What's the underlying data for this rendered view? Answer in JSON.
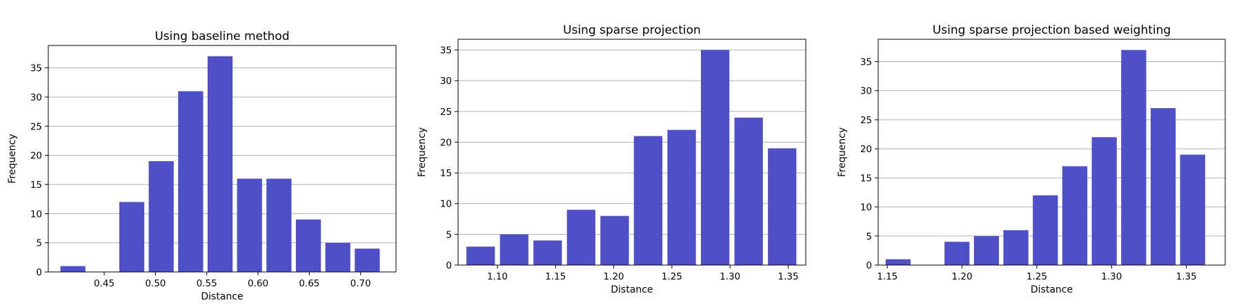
{
  "chart_data": [
    {
      "type": "bar",
      "title": "Using baseline method",
      "xlabel": "Distance",
      "ylabel": "Frequency",
      "bar_color": "#4f4fc7",
      "grid": "y",
      "bin_width": 0.0287,
      "x": [
        0.4195,
        0.4482,
        0.4769,
        0.5056,
        0.5343,
        0.563,
        0.5917,
        0.6204,
        0.6491,
        0.6778,
        0.7065
      ],
      "values": [
        1,
        0,
        12,
        19,
        31,
        37,
        16,
        16,
        9,
        5,
        4
      ],
      "xlim": [
        0.3955,
        0.7345
      ],
      "ylim": [
        0,
        38.85
      ],
      "xticks": [
        0.45,
        0.5,
        0.55,
        0.6,
        0.65,
        0.7
      ],
      "xtick_labels": [
        "0.45",
        "0.50",
        "0.55",
        "0.60",
        "0.65",
        "0.70"
      ],
      "yticks": [
        0,
        5,
        10,
        15,
        20,
        25,
        30,
        35
      ],
      "ytick_labels": [
        "0",
        "5",
        "10",
        "15",
        "20",
        "25",
        "30",
        "35"
      ]
    },
    {
      "type": "bar",
      "title": "Using sparse projection",
      "xlabel": "Distance",
      "ylabel": "Frequency",
      "bar_color": "#4f4fc7",
      "grid": "y",
      "bin_width": 0.0288,
      "x": [
        1.0856,
        1.1144,
        1.1432,
        1.172,
        1.2008,
        1.2296,
        1.2584,
        1.2872,
        1.316,
        1.3448
      ],
      "values": [
        3,
        5,
        4,
        9,
        8,
        21,
        22,
        35,
        24,
        19
      ],
      "xlim": [
        1.0662,
        1.3651
      ],
      "ylim": [
        0,
        36.75
      ],
      "xticks": [
        1.1,
        1.15,
        1.2,
        1.25,
        1.3,
        1.35
      ],
      "xtick_labels": [
        "1.10",
        "1.15",
        "1.20",
        "1.25",
        "1.30",
        "1.35"
      ],
      "yticks": [
        0,
        5,
        10,
        15,
        20,
        25,
        30,
        35
      ],
      "ytick_labels": [
        "0",
        "5",
        "10",
        "15",
        "20",
        "25",
        "30",
        "35"
      ]
    },
    {
      "type": "bar",
      "title": "Using sparse projection based weighting",
      "xlabel": "Distance",
      "ylabel": "Frequency",
      "bar_color": "#4f4fc7",
      "grid": "y",
      "bin_width": 0.0197,
      "x": [
        1.1572,
        1.1769,
        1.1966,
        1.2163,
        1.236,
        1.2557,
        1.2754,
        1.2951,
        1.3148,
        1.3345,
        1.3542
      ],
      "values": [
        1,
        0,
        4,
        5,
        6,
        12,
        17,
        22,
        37,
        27,
        19
      ],
      "xlim": [
        1.1439,
        1.376
      ],
      "ylim": [
        0,
        38.85
      ],
      "xticks": [
        1.15,
        1.2,
        1.25,
        1.3,
        1.35
      ],
      "xtick_labels": [
        "1.15",
        "1.20",
        "1.25",
        "1.30",
        "1.35"
      ],
      "yticks": [
        0,
        5,
        10,
        15,
        20,
        25,
        30,
        35
      ],
      "ytick_labels": [
        "0",
        "5",
        "10",
        "15",
        "20",
        "25",
        "30",
        "35"
      ]
    }
  ]
}
